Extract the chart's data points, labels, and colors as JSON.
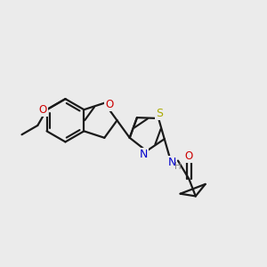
{
  "background_color": "#ebebeb",
  "bond_color": "#1a1a1a",
  "bond_width": 1.6,
  "figsize": [
    3.0,
    3.0
  ],
  "dpi": 100,
  "xlim": [
    0,
    10
  ],
  "ylim": [
    0,
    10
  ]
}
